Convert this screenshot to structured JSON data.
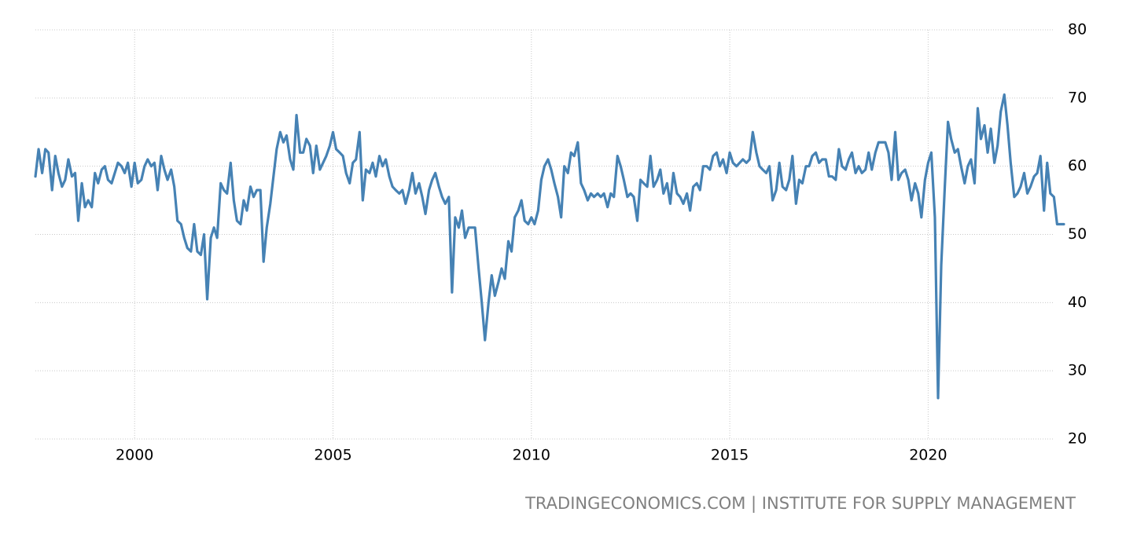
{
  "chart_data": {
    "type": "line",
    "source": "TRADINGECONOMICS.COM | INSTITUTE FOR SUPPLY MANAGEMENT",
    "xlim": [
      1997.4,
      2023.5
    ],
    "ylim": [
      20,
      80
    ],
    "xticks": [
      2000,
      2005,
      2010,
      2015,
      2020
    ],
    "yticks": [
      20,
      30,
      40,
      50,
      60,
      70,
      80
    ],
    "grid": true,
    "series": [
      {
        "color": "#4682b4",
        "x": [
          1997.5,
          1997.58,
          1997.67,
          1997.75,
          1997.83,
          1997.92,
          1998,
          1998.08,
          1998.17,
          1998.25,
          1998.33,
          1998.42,
          1998.5,
          1998.58,
          1998.67,
          1998.75,
          1998.83,
          1998.92,
          1999,
          1999.08,
          1999.17,
          1999.25,
          1999.33,
          1999.42,
          1999.5,
          1999.58,
          1999.67,
          1999.75,
          1999.83,
          1999.92,
          2000,
          2000.08,
          2000.17,
          2000.25,
          2000.33,
          2000.42,
          2000.5,
          2000.58,
          2000.67,
          2000.75,
          2000.83,
          2000.92,
          2001,
          2001.08,
          2001.17,
          2001.25,
          2001.33,
          2001.42,
          2001.5,
          2001.58,
          2001.67,
          2001.75,
          2001.83,
          2001.92,
          2002,
          2002.08,
          2002.17,
          2002.25,
          2002.33,
          2002.42,
          2002.5,
          2002.58,
          2002.67,
          2002.75,
          2002.83,
          2002.92,
          2003,
          2003.08,
          2003.17,
          2003.25,
          2003.33,
          2003.42,
          2003.5,
          2003.58,
          2003.67,
          2003.75,
          2003.83,
          2003.92,
          2004,
          2004.08,
          2004.17,
          2004.25,
          2004.33,
          2004.42,
          2004.5,
          2004.58,
          2004.67,
          2004.75,
          2004.83,
          2004.92,
          2005,
          2005.08,
          2005.17,
          2005.25,
          2005.33,
          2005.42,
          2005.5,
          2005.58,
          2005.67,
          2005.75,
          2005.83,
          2005.92,
          2006,
          2006.08,
          2006.17,
          2006.25,
          2006.33,
          2006.42,
          2006.5,
          2006.58,
          2006.67,
          2006.75,
          2006.83,
          2006.92,
          2007,
          2007.08,
          2007.17,
          2007.25,
          2007.33,
          2007.42,
          2007.5,
          2007.58,
          2007.67,
          2007.75,
          2007.83,
          2007.92,
          2008,
          2008.08,
          2008.17,
          2008.25,
          2008.33,
          2008.42,
          2008.5,
          2008.58,
          2008.67,
          2008.75,
          2008.83,
          2008.92,
          2009,
          2009.08,
          2009.17,
          2009.25,
          2009.33,
          2009.42,
          2009.5,
          2009.58,
          2009.67,
          2009.75,
          2009.83,
          2009.92,
          2010,
          2010.08,
          2010.17,
          2010.25,
          2010.33,
          2010.42,
          2010.5,
          2010.58,
          2010.67,
          2010.75,
          2010.83,
          2010.92,
          2011,
          2011.08,
          2011.17,
          2011.25,
          2011.33,
          2011.42,
          2011.5,
          2011.58,
          2011.67,
          2011.75,
          2011.83,
          2011.92,
          2012,
          2012.08,
          2012.17,
          2012.25,
          2012.33,
          2012.42,
          2012.5,
          2012.58,
          2012.67,
          2012.75,
          2012.83,
          2012.92,
          2013,
          2013.08,
          2013.17,
          2013.25,
          2013.33,
          2013.42,
          2013.5,
          2013.58,
          2013.67,
          2013.75,
          2013.83,
          2013.92,
          2014,
          2014.08,
          2014.17,
          2014.25,
          2014.33,
          2014.42,
          2014.5,
          2014.58,
          2014.67,
          2014.75,
          2014.83,
          2014.92,
          2015,
          2015.08,
          2015.17,
          2015.25,
          2015.33,
          2015.42,
          2015.5,
          2015.58,
          2015.67,
          2015.75,
          2015.83,
          2015.92,
          2016,
          2016.08,
          2016.17,
          2016.25,
          2016.33,
          2016.42,
          2016.5,
          2016.58,
          2016.67,
          2016.75,
          2016.83,
          2016.92,
          2017,
          2017.08,
          2017.17,
          2017.25,
          2017.33,
          2017.42,
          2017.5,
          2017.58,
          2017.67,
          2017.75,
          2017.83,
          2017.92,
          2018,
          2018.08,
          2018.17,
          2018.25,
          2018.33,
          2018.42,
          2018.5,
          2018.58,
          2018.67,
          2018.75,
          2018.83,
          2018.92,
          2019,
          2019.08,
          2019.17,
          2019.25,
          2019.33,
          2019.42,
          2019.5,
          2019.58,
          2019.67,
          2019.75,
          2019.83,
          2019.92,
          2020,
          2020.08,
          2020.17,
          2020.25,
          2020.33,
          2020.42,
          2020.5,
          2020.58,
          2020.67,
          2020.75,
          2020.83,
          2020.92,
          2021,
          2021.08,
          2021.17,
          2021.25,
          2021.33,
          2021.42,
          2021.5,
          2021.58,
          2021.67,
          2021.75,
          2021.83,
          2021.92,
          2022,
          2022.08,
          2022.17,
          2022.25,
          2022.33,
          2022.42,
          2022.5,
          2022.58,
          2022.67,
          2022.75,
          2022.83,
          2022.92,
          2023,
          2023.08,
          2023.17,
          2023.25,
          2023.33,
          2023.42
        ],
        "values": [
          58.5,
          62.5,
          59,
          62.5,
          62,
          56.5,
          61.5,
          59,
          57,
          58,
          61,
          58.5,
          59,
          52,
          57.5,
          54,
          55,
          54,
          59,
          57.5,
          59.5,
          60,
          58,
          57.5,
          59,
          60.5,
          60,
          59,
          60.5,
          57,
          60.5,
          57.5,
          58,
          60,
          61,
          60,
          60.5,
          56.5,
          61.5,
          59.5,
          58,
          59.5,
          57,
          52,
          51.5,
          49.5,
          48,
          47.5,
          51.5,
          47.5,
          47,
          50,
          40.5,
          49.5,
          51,
          49.5,
          57.5,
          56.5,
          56,
          60.5,
          55,
          52,
          51.5,
          55,
          53.5,
          57,
          55.5,
          56.5,
          56.5,
          46,
          51,
          54.5,
          58.5,
          62.5,
          65,
          63.5,
          64.5,
          61,
          59.5,
          67.5,
          62,
          62,
          64,
          63,
          59,
          63,
          59.5,
          60.5,
          61.5,
          63,
          65,
          62.5,
          62,
          61.5,
          59,
          57.5,
          60.5,
          61,
          65,
          55,
          59.5,
          59,
          60.5,
          58.5,
          61.5,
          60,
          61,
          58.5,
          57,
          56.5,
          56,
          56.5,
          54.5,
          56.5,
          59,
          56,
          57.5,
          55.5,
          53,
          56.5,
          58,
          59,
          57,
          55.5,
          54.5,
          55.5,
          41.5,
          52.5,
          51,
          53.5,
          49.5,
          51,
          51,
          51,
          45,
          40,
          34.5,
          40,
          44,
          41,
          43,
          45,
          43.5,
          49,
          47.5,
          52.5,
          53.5,
          55,
          52,
          51.5,
          52.5,
          51.5,
          53.5,
          58,
          60,
          61,
          59.5,
          57.5,
          55.5,
          52.5,
          60,
          59,
          62,
          61.5,
          63.5,
          57.5,
          56.5,
          55,
          56,
          55.5,
          56,
          55.5,
          56,
          54,
          56,
          55.5,
          61.5,
          60,
          58,
          55.5,
          56,
          55.5,
          52,
          58,
          57.5,
          57,
          61.5,
          57,
          58,
          59.5,
          56,
          57.5,
          54.5,
          59,
          56,
          55.5,
          54.5,
          56,
          53.5,
          57,
          57.5,
          56.5,
          60,
          60,
          59.5,
          61.5,
          62,
          60,
          61,
          59,
          62,
          60.5,
          60,
          60.5,
          61,
          60.5,
          61,
          65,
          62,
          60,
          59.5,
          59,
          60,
          55,
          56.5,
          60.5,
          57,
          56.5,
          58,
          61.5,
          54.5,
          58,
          57.5,
          60,
          60,
          61.5,
          62,
          60.5,
          61,
          61,
          58.5,
          58.5,
          58,
          62.5,
          60,
          59.5,
          61,
          62,
          59,
          60,
          59,
          59.5,
          62,
          59.5,
          62,
          63.5,
          63.5,
          63.5,
          62,
          58,
          65,
          58,
          59,
          59.5,
          58,
          55,
          57.5,
          56,
          52.5,
          58,
          60.5,
          62,
          52.5,
          26,
          45.5,
          57,
          66.5,
          64,
          62,
          62.5,
          60,
          57.5,
          60,
          61,
          57.5,
          68.5,
          64,
          66,
          62,
          65.5,
          60.5,
          63,
          68,
          70.5,
          66,
          60.5,
          55.5,
          56,
          57,
          59,
          56,
          57,
          58.5,
          59,
          61.5,
          53.5,
          60.5,
          56,
          55.5,
          51.5,
          51.5,
          51.5
        ]
      }
    ]
  }
}
